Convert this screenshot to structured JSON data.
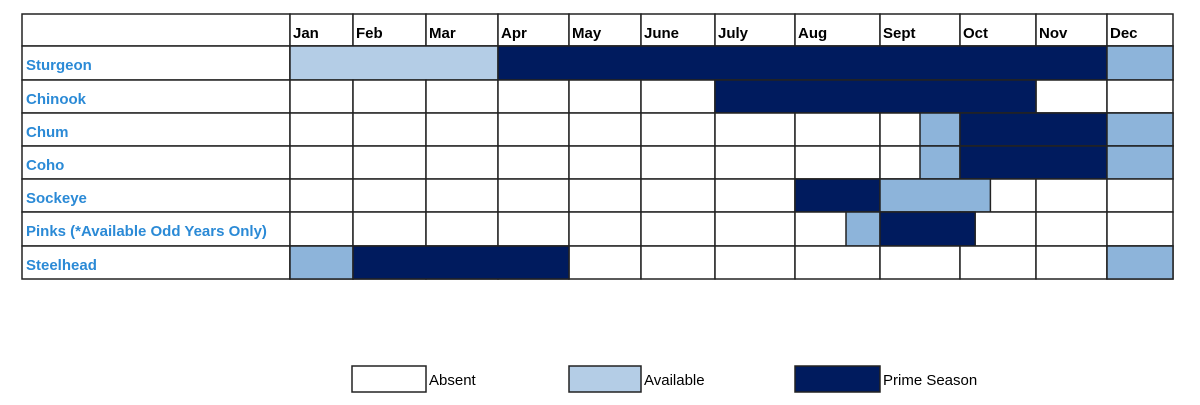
{
  "chart_data": {
    "type": "table",
    "months": [
      "Jan",
      "Feb",
      "Mar",
      "Apr",
      "May",
      "June",
      "July",
      "Aug",
      "Sept",
      "Oct",
      "Nov",
      "Dec"
    ],
    "colors": {
      "absent": "#ffffff",
      "available": "#b4cde6",
      "available_alt": "#8db4da",
      "prime": "#001b5e",
      "label": "#2b8ad6"
    },
    "rows": [
      {
        "label": "Sturgeon",
        "segments": [
          {
            "status": "available",
            "start": 0,
            "end": 3
          },
          {
            "status": "prime",
            "start": 3,
            "end": 11
          },
          {
            "status": "available_alt",
            "start": 11,
            "end": 12
          }
        ]
      },
      {
        "label": "Chinook",
        "segments": [
          {
            "status": "prime",
            "start": 6,
            "end": 10
          }
        ]
      },
      {
        "label": "Chum",
        "segments": [
          {
            "status": "available_alt",
            "start": 8.5,
            "end": 9
          },
          {
            "status": "prime",
            "start": 9,
            "end": 11
          },
          {
            "status": "available_alt",
            "start": 11,
            "end": 12
          }
        ]
      },
      {
        "label": "Coho",
        "segments": [
          {
            "status": "available_alt",
            "start": 8.5,
            "end": 9
          },
          {
            "status": "prime",
            "start": 9,
            "end": 11
          },
          {
            "status": "available_alt",
            "start": 11,
            "end": 12
          }
        ]
      },
      {
        "label": "Sockeye",
        "segments": [
          {
            "status": "prime",
            "start": 7,
            "end": 8
          },
          {
            "status": "available_alt",
            "start": 8,
            "end": 9.4
          }
        ]
      },
      {
        "label": "Pinks (*Available Odd Years Only)",
        "segments": [
          {
            "status": "available_alt",
            "start": 7.6,
            "end": 8
          },
          {
            "status": "prime",
            "start": 8,
            "end": 9.2
          }
        ]
      },
      {
        "label": "Steelhead",
        "segments": [
          {
            "status": "available_alt",
            "start": 0,
            "end": 1
          },
          {
            "status": "prime",
            "start": 1,
            "end": 4
          },
          {
            "status": "available_alt",
            "start": 11,
            "end": 12
          }
        ]
      }
    ],
    "legend": [
      {
        "status": "absent",
        "label": "Absent"
      },
      {
        "status": "available",
        "label": "Available"
      },
      {
        "status": "prime",
        "label": "Prime Season"
      }
    ],
    "legend_placement": "bottom"
  }
}
